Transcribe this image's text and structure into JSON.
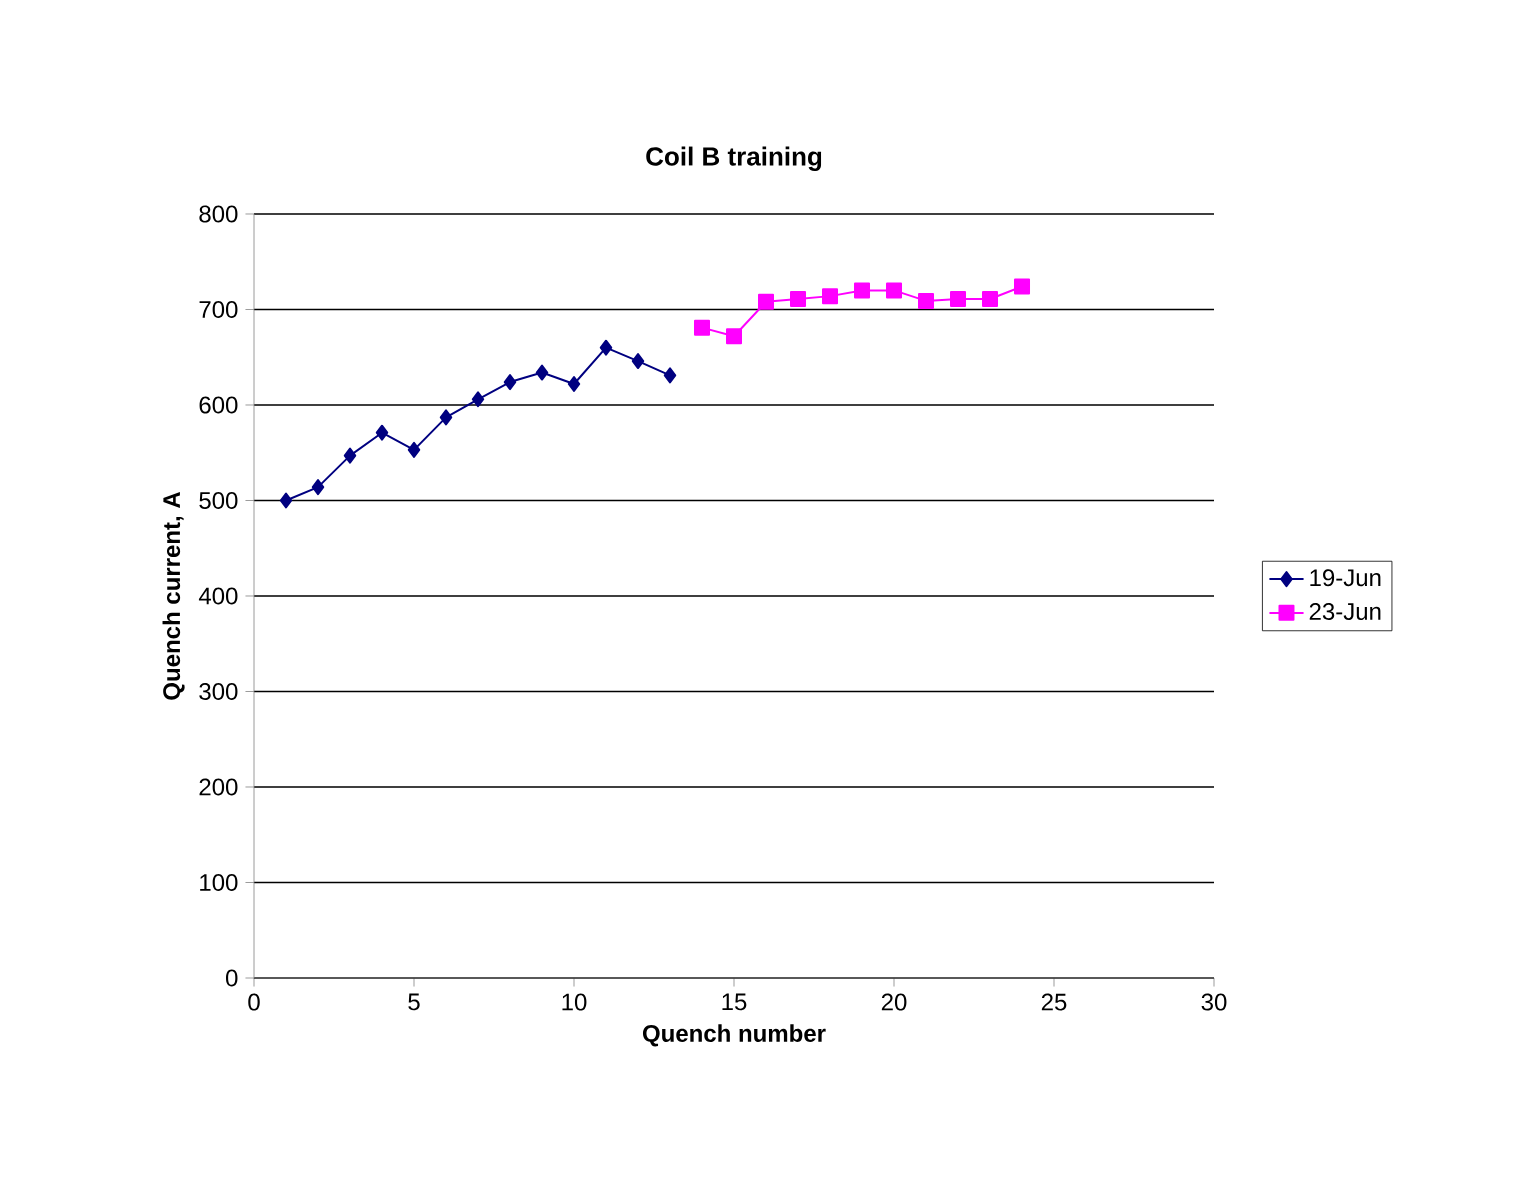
{
  "chart_data": {
    "type": "line",
    "title": "Coil B training",
    "xlabel": "Quench number",
    "ylabel": "Quench current, A",
    "xlim": [
      0,
      30
    ],
    "xticks": [
      0,
      5,
      10,
      15,
      20,
      25,
      30
    ],
    "ylim": [
      0,
      800
    ],
    "yticks": [
      0,
      100,
      200,
      300,
      400,
      500,
      600,
      700,
      800
    ],
    "grid": "y",
    "legend": "right",
    "line_style": "solid",
    "series": [
      {
        "name": "19-Jun",
        "color": "#000080",
        "marker": "diamond",
        "x": [
          1,
          2,
          3,
          4,
          5,
          6,
          7,
          8,
          9,
          10,
          11,
          12,
          13
        ],
        "values": [
          500,
          514,
          547,
          571,
          553,
          587,
          606,
          624,
          634,
          622,
          660,
          646,
          631
        ]
      },
      {
        "name": "23-Jun",
        "color": "#ff00ff",
        "marker": "square",
        "x": [
          14,
          15,
          16,
          17,
          18,
          19,
          20,
          21,
          22,
          23,
          24
        ],
        "values": [
          681,
          672,
          708,
          711,
          714,
          720,
          720,
          709,
          711,
          711,
          724
        ]
      }
    ]
  }
}
